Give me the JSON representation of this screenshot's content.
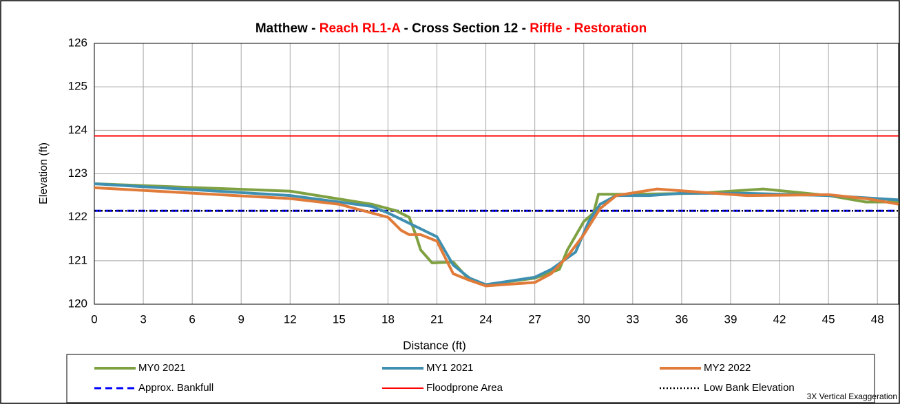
{
  "chart_data": {
    "type": "line",
    "title_parts": [
      {
        "text": "Matthew - ",
        "color": "#000000"
      },
      {
        "text": "Reach RL1-A",
        "color": "#ff0000"
      },
      {
        "text": " - Cross Section 12 - ",
        "color": "#000000"
      },
      {
        "text": "Riffle - Restoration",
        "color": "#ff0000"
      }
    ],
    "x_label": "Distance (ft)",
    "y_label": "Elevation (ft)",
    "annotation": "3X Vertical Exaggeration",
    "xlim": [
      0,
      49.3
    ],
    "xticks": [
      0,
      3,
      6,
      9,
      12,
      15,
      18,
      21,
      24,
      27,
      30,
      33,
      36,
      39,
      42,
      45,
      48
    ],
    "ylim": [
      120,
      126
    ],
    "yticks": [
      120,
      121,
      122,
      123,
      124,
      125,
      126
    ],
    "grid": true,
    "series": [
      {
        "name": "MY0 2021",
        "color": "#7fa142",
        "x": [
          0,
          12,
          17,
          18.5,
          19.3,
          19.7,
          20,
          20.7,
          22,
          23,
          24,
          27,
          28.5,
          29,
          30,
          30.6,
          30.9,
          33,
          37,
          41,
          45,
          47.3,
          49.3
        ],
        "values": [
          122.77,
          122.6,
          122.3,
          122.15,
          122.0,
          121.6,
          121.25,
          120.95,
          120.97,
          120.55,
          120.45,
          120.6,
          120.8,
          121.25,
          121.9,
          122.1,
          122.53,
          122.53,
          122.55,
          122.65,
          122.5,
          122.35,
          122.35
        ]
      },
      {
        "name": "MY1 2021",
        "color": "#3f8fb0",
        "x": [
          0,
          12,
          17,
          18,
          21,
          22,
          23,
          24,
          27,
          28,
          29.5,
          30.3,
          31,
          32,
          34,
          36,
          40,
          45,
          49.3
        ],
        "values": [
          122.77,
          122.5,
          122.25,
          122.1,
          121.55,
          120.9,
          120.6,
          120.45,
          120.62,
          120.8,
          121.2,
          121.9,
          122.3,
          122.5,
          122.5,
          122.55,
          122.55,
          122.5,
          122.4
        ]
      },
      {
        "name": "MY2 2022",
        "color": "#e07b39",
        "x": [
          0,
          12,
          15,
          18,
          18.8,
          19.3,
          20,
          21,
          22,
          23,
          24,
          25,
          27,
          28,
          29,
          30,
          31,
          32,
          34.5,
          37,
          40,
          45,
          47.5,
          49.3
        ],
        "values": [
          122.68,
          122.43,
          122.3,
          122.0,
          121.7,
          121.6,
          121.6,
          121.45,
          120.7,
          120.55,
          120.42,
          120.45,
          120.5,
          120.7,
          121.1,
          121.6,
          122.2,
          122.5,
          122.65,
          122.58,
          122.5,
          122.52,
          122.42,
          122.3
        ]
      }
    ],
    "hlines": [
      {
        "name": "Approx. Bankfull",
        "color": "#0000ff",
        "style": "dashed",
        "value": 122.15
      },
      {
        "name": "Floodprone Area",
        "color": "#ff0000",
        "style": "solid",
        "value": 123.87
      },
      {
        "name": "Low Bank Elevation",
        "color": "#000000",
        "style": "dotted",
        "value": 122.15
      }
    ]
  }
}
